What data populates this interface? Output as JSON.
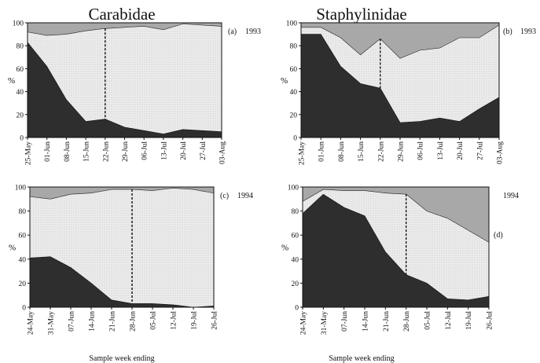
{
  "titles": {
    "left": "Carabidae",
    "right": "Staphylinidae"
  },
  "footer_labels": {
    "left": "Sample week ending",
    "right": "Sample week ending"
  },
  "colors": {
    "dark": "#2e2e2e",
    "light": "#eaeaea",
    "top": "#a8a8a8",
    "axis": "#111111"
  },
  "chart_data": [
    {
      "type": "area",
      "panel": "(a)",
      "year": "1993",
      "family": "Carabidae",
      "ylabel": "%",
      "ylim": [
        0,
        100
      ],
      "yticks": [
        0,
        20,
        40,
        60,
        80,
        100
      ],
      "categories": [
        "25-May",
        "01-Jun",
        "08-Jun",
        "15-Jun",
        "22-Jun",
        "29-Jun",
        "06-Jul",
        "13-Jul",
        "20-Jul",
        "27-Jul",
        "03-Aug"
      ],
      "boundaries": [
        {
          "values": [
            83,
            62,
            33,
            14,
            16,
            9,
            6,
            3,
            7,
            6,
            5
          ]
        },
        {
          "values": [
            92,
            89,
            90,
            93,
            95,
            96,
            97,
            94,
            99,
            98,
            97
          ]
        }
      ],
      "divider_index": 4
    },
    {
      "type": "area",
      "panel": "(b)",
      "year": "1993",
      "family": "Staphylinidae",
      "ylabel": "%",
      "ylim": [
        0,
        100
      ],
      "yticks": [
        0,
        20,
        40,
        60,
        80,
        100
      ],
      "categories": [
        "25-May",
        "01-Jun",
        "08-Jun",
        "15-Jun",
        "22-Jun",
        "29-Jun",
        "06-Jul",
        "13-Jul",
        "20-Jul",
        "27-Jul",
        "03-Aug"
      ],
      "boundaries": [
        {
          "values": [
            90,
            90,
            62,
            47,
            43,
            13,
            14,
            17,
            14,
            25,
            35
          ]
        },
        {
          "values": [
            96,
            96,
            87,
            72,
            86,
            69,
            76,
            78,
            87,
            87,
            98
          ]
        }
      ],
      "divider_index": 4
    },
    {
      "type": "area",
      "panel": "(c)",
      "year": "1994",
      "family": "Carabidae",
      "ylabel": "%",
      "ylim": [
        0,
        100
      ],
      "yticks": [
        0,
        20,
        40,
        60,
        80,
        100
      ],
      "categories": [
        "24-May",
        "31-May",
        "07-Jun",
        "14-Jun",
        "21-Jun",
        "28-Jun",
        "05-Jul",
        "12-Jul",
        "19-Jul",
        "26-Jul"
      ],
      "boundaries": [
        {
          "values": [
            41,
            42,
            33,
            20,
            6,
            3,
            3,
            2,
            0,
            1
          ]
        },
        {
          "values": [
            92,
            90,
            94,
            95,
            98,
            98,
            97,
            99,
            98,
            95
          ]
        }
      ],
      "divider_index": 5
    },
    {
      "type": "area",
      "panel": "(d)",
      "year": "1994",
      "family": "Staphylinidae",
      "ylabel": "%",
      "ylim": [
        0,
        100
      ],
      "yticks": [
        0,
        20,
        40,
        60,
        80,
        100
      ],
      "categories": [
        "24-May",
        "31-May",
        "07-Jun",
        "14-Jun",
        "21-Jun",
        "28-Jun",
        "05-Jul",
        "12-Jul",
        "19-Jul",
        "26-Jul"
      ],
      "boundaries": [
        {
          "values": [
            78,
            94,
            83,
            76,
            46,
            27,
            20,
            7,
            6,
            9
          ]
        },
        {
          "values": [
            88,
            98,
            97,
            97,
            95,
            94,
            80,
            74,
            64,
            54
          ]
        }
      ],
      "divider_index": 5
    }
  ]
}
